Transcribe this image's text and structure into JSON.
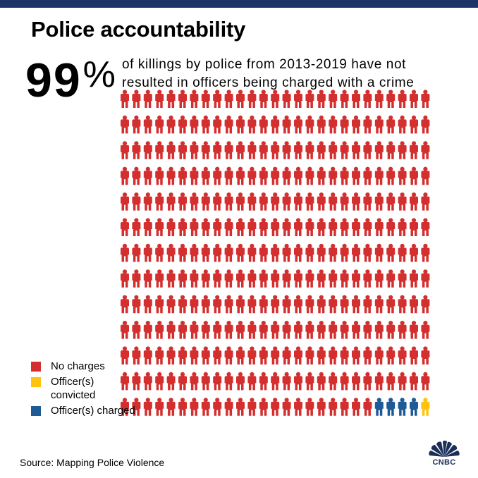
{
  "title": "Police accountability",
  "headline": {
    "number": "99",
    "symbol": "%"
  },
  "subtitle": "of killings by police from 2013-2019 have not resulted in officers being charged with a crime",
  "source": "Source: Mapping Police Violence",
  "logo": {
    "text": "CNBC"
  },
  "colors": {
    "top_bar": "#1c3366",
    "no_charges": "#d32f2f",
    "convicted": "#ffc20e",
    "charged": "#1e5a96"
  },
  "chart_data": {
    "type": "pictograph",
    "rows": 13,
    "columns": 27,
    "total_icons": 351,
    "categories": [
      "No charges",
      "Officer(s) convicted",
      "Officer(s) charged"
    ],
    "values": [
      346,
      1,
      4
    ],
    "legend_position": "bottom-left"
  },
  "legend": [
    {
      "label": "No charges",
      "color": "#d32f2f"
    },
    {
      "label": "Officer(s) convicted",
      "color": "#ffc20e"
    },
    {
      "label": "Officer(s) charged",
      "color": "#1e5a96"
    }
  ]
}
